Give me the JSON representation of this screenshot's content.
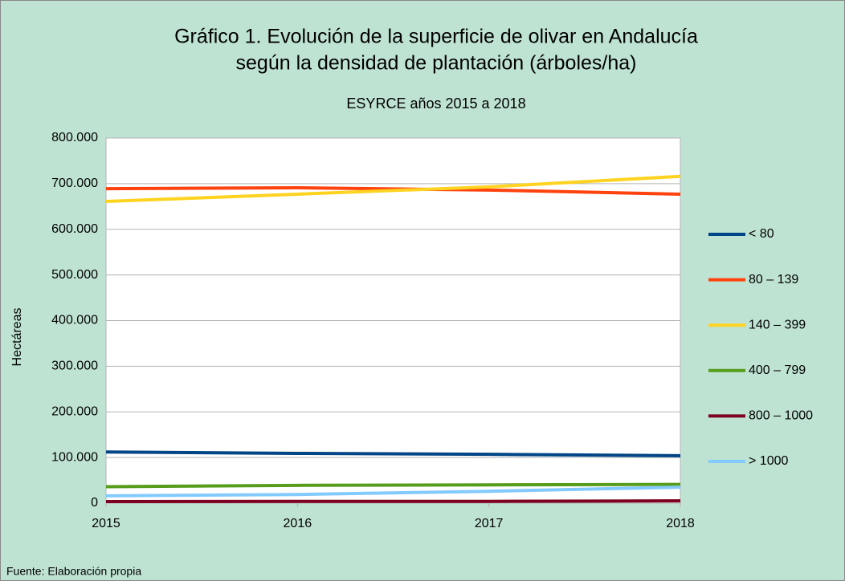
{
  "chart_data": {
    "type": "line",
    "title": [
      "Gráfico 1. Evolución de la superficie de olivar en Andalucía",
      "según la densidad de plantación (árboles/ha)"
    ],
    "subtitle": "ESYRCE años 2015 a 2018",
    "y_label": "Hectáreas",
    "source": "Fuente: Elaboración propia",
    "x": [
      2015,
      2016,
      2017,
      2018
    ],
    "xlim": [
      2015,
      2018
    ],
    "xticks": [
      2015,
      2016,
      2017,
      2018
    ],
    "ylim": [
      0,
      800000
    ],
    "yticks": [
      0,
      {
        "value": 100000,
        "label": "100.000"
      },
      {
        "value": 200000,
        "label": "200.000"
      },
      {
        "value": 300000,
        "label": "300.000"
      },
      {
        "value": 400000,
        "label": "400.000"
      },
      {
        "value": 500000,
        "label": "500.000"
      },
      {
        "value": 600000,
        "label": "600.000"
      },
      {
        "value": 700000,
        "label": "700.000"
      },
      {
        "value": 800000,
        "label": "800.000"
      }
    ],
    "grid": true,
    "legend": "right",
    "series": [
      {
        "name": "< 80",
        "color": "#004586",
        "values": [
          112000,
          109000,
          107000,
          104000
        ]
      },
      {
        "name": "80 – 139",
        "color": "#ff420e",
        "values": [
          689000,
          691000,
          686000,
          677000
        ]
      },
      {
        "name": "140 – 399",
        "color": "#ffd320",
        "values": [
          661000,
          677000,
          693000,
          716000
        ]
      },
      {
        "name": "400 – 799",
        "color": "#579d1c",
        "values": [
          36000,
          39000,
          40000,
          41000
        ]
      },
      {
        "name": "800 – 1000",
        "color": "#7e0021",
        "values": [
          3500,
          4000,
          4000,
          5000
        ]
      },
      {
        "name": "> 1000",
        "color": "#83caff",
        "values": [
          16000,
          19000,
          26000,
          35000
        ]
      }
    ]
  }
}
